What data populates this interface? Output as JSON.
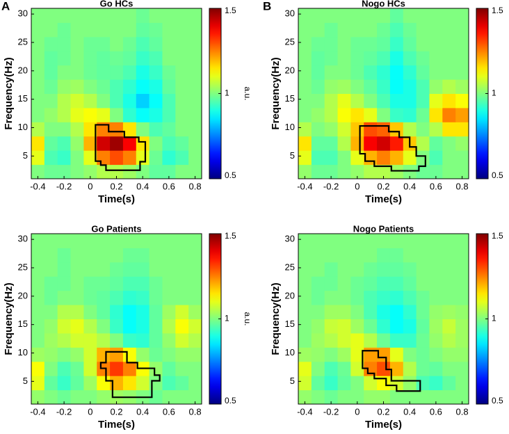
{
  "chart_data": [
    {
      "type": "heatmap",
      "panel_label": "A",
      "title": "Go HCs",
      "xlabel": "Time(s)",
      "ylabel": "Frequency(Hz)",
      "colorbar_label": "a.u.",
      "colormap": "jet",
      "x": [
        -0.4,
        -0.3,
        -0.2,
        -0.1,
        0,
        0.1,
        0.2,
        0.3,
        0.4,
        0.5,
        0.6,
        0.7,
        0.8
      ],
      "y": [
        2.25,
        4.75,
        7.25,
        9.75,
        12.25,
        14.75,
        17.25,
        19.75,
        22.25,
        24.75,
        27.25,
        29.75
      ],
      "z": [
        [
          1.0,
          0.98,
          0.98,
          1.0,
          1.02,
          1.05,
          1.05,
          1.03,
          1.0,
          0.97,
          0.97,
          1.0,
          1.0
        ],
        [
          1.1,
          0.95,
          0.93,
          1.0,
          1.1,
          1.25,
          1.3,
          1.25,
          1.1,
          0.98,
          0.92,
          0.95,
          1.0
        ],
        [
          1.15,
          0.97,
          0.95,
          1.02,
          1.2,
          1.42,
          1.47,
          1.38,
          1.15,
          1.0,
          0.95,
          0.97,
          1.0
        ],
        [
          1.05,
          1.0,
          1.0,
          1.05,
          1.15,
          1.25,
          1.25,
          1.15,
          1.0,
          0.95,
          0.97,
          1.0,
          1.0
        ],
        [
          1.0,
          1.02,
          1.05,
          1.1,
          1.12,
          1.1,
          1.0,
          0.92,
          0.88,
          0.9,
          0.95,
          1.0,
          1.0
        ],
        [
          1.0,
          1.0,
          1.05,
          1.08,
          1.05,
          1.0,
          0.95,
          0.9,
          0.83,
          0.88,
          0.95,
          1.0,
          1.0
        ],
        [
          1.0,
          0.98,
          1.02,
          1.03,
          1.0,
          0.98,
          0.95,
          0.92,
          0.88,
          0.9,
          0.97,
          1.0,
          1.0
        ],
        [
          1.0,
          0.97,
          1.0,
          1.0,
          0.98,
          0.97,
          0.97,
          0.95,
          0.9,
          0.93,
          0.98,
          1.0,
          1.0
        ],
        [
          1.0,
          0.97,
          0.98,
          1.0,
          0.98,
          0.97,
          0.98,
          0.97,
          0.93,
          0.95,
          1.0,
          1.0,
          1.0
        ],
        [
          1.0,
          0.98,
          0.98,
          1.0,
          0.98,
          0.98,
          1.0,
          0.98,
          0.95,
          0.97,
          1.0,
          1.0,
          1.0
        ],
        [
          1.0,
          1.0,
          0.98,
          1.0,
          1.0,
          1.0,
          1.0,
          1.0,
          0.97,
          0.98,
          1.0,
          1.0,
          1.0
        ],
        [
          1.0,
          1.0,
          1.0,
          1.0,
          1.0,
          1.0,
          1.0,
          1.0,
          0.98,
          1.0,
          1.0,
          1.0,
          1.0
        ]
      ],
      "cluster": {
        "x": [
          0.04,
          0.14,
          0.14,
          0.26,
          0.26,
          0.37,
          0.37,
          0.42,
          0.42,
          0.38,
          0.38,
          0.12,
          0.12,
          0.08,
          0.08,
          0.04
        ],
        "y": [
          10.5,
          10.5,
          9.3,
          9.3,
          8.3,
          8.3,
          7.5,
          7.5,
          4.0,
          4.0,
          2.5,
          2.5,
          3.4,
          3.4,
          4.1,
          4.1
        ]
      },
      "xlim": [
        -0.45,
        0.85
      ],
      "ylim": [
        1,
        31
      ],
      "xticks": [
        -0.4,
        -0.2,
        0,
        0.2,
        0.4,
        0.6,
        0.8
      ],
      "yticks": [
        5,
        10,
        15,
        20,
        25,
        30
      ],
      "clim": [
        0.5,
        1.5
      ],
      "cticks": [
        0.5,
        1,
        1.5
      ]
    },
    {
      "type": "heatmap",
      "panel_label": "B",
      "title": "Nogo HCs",
      "xlabel": "Time(s)",
      "ylabel": "Frequency(Hz)",
      "colorbar_label": "a.u.",
      "colormap": "jet",
      "x": [
        -0.4,
        -0.3,
        -0.2,
        -0.1,
        0,
        0.1,
        0.2,
        0.3,
        0.4,
        0.5,
        0.6,
        0.7,
        0.8
      ],
      "y": [
        2.25,
        4.75,
        7.25,
        9.75,
        12.25,
        14.75,
        17.25,
        19.75,
        22.25,
        24.75,
        27.25,
        29.75
      ],
      "z": [
        [
          1.02,
          0.98,
          0.98,
          1.0,
          1.02,
          1.05,
          1.05,
          1.03,
          1.0,
          0.98,
          0.98,
          1.0,
          1.0
        ],
        [
          1.1,
          0.95,
          0.95,
          1.0,
          1.1,
          1.2,
          1.25,
          1.2,
          1.1,
          1.0,
          0.95,
          1.0,
          1.0
        ],
        [
          1.15,
          0.97,
          0.97,
          1.05,
          1.2,
          1.38,
          1.42,
          1.35,
          1.18,
          1.05,
          0.97,
          1.0,
          1.02
        ],
        [
          1.05,
          1.0,
          1.02,
          1.08,
          1.18,
          1.3,
          1.28,
          1.18,
          1.05,
          1.0,
          1.05,
          1.15,
          1.15
        ],
        [
          1.0,
          1.02,
          1.05,
          1.12,
          1.15,
          1.1,
          1.0,
          0.93,
          0.92,
          0.98,
          1.15,
          1.25,
          1.22
        ],
        [
          1.0,
          1.0,
          1.05,
          1.1,
          1.05,
          1.0,
          0.95,
          0.9,
          0.9,
          0.95,
          1.1,
          1.15,
          1.12
        ],
        [
          1.0,
          0.98,
          1.02,
          1.03,
          1.0,
          0.97,
          0.93,
          0.88,
          0.9,
          0.95,
          1.02,
          1.05,
          1.03
        ],
        [
          1.0,
          0.97,
          1.0,
          1.0,
          0.98,
          0.95,
          0.92,
          0.88,
          0.92,
          0.97,
          1.0,
          1.0,
          1.0
        ],
        [
          1.0,
          0.97,
          0.98,
          1.0,
          0.98,
          0.97,
          0.95,
          0.9,
          0.95,
          0.98,
          1.0,
          1.0,
          1.0
        ],
        [
          1.0,
          0.98,
          0.98,
          1.0,
          0.98,
          0.98,
          0.97,
          0.93,
          0.97,
          1.0,
          1.0,
          1.0,
          1.0
        ],
        [
          1.0,
          1.0,
          0.98,
          1.0,
          1.0,
          1.0,
          0.98,
          0.95,
          0.98,
          1.0,
          1.0,
          1.0,
          1.0
        ],
        [
          1.0,
          1.0,
          1.0,
          1.0,
          1.0,
          1.0,
          1.0,
          0.97,
          1.0,
          1.0,
          1.0,
          1.0,
          1.0
        ]
      ],
      "cluster": {
        "x": [
          0.02,
          0.24,
          0.24,
          0.32,
          0.32,
          0.4,
          0.4,
          0.45,
          0.45,
          0.52,
          0.52,
          0.47,
          0.47,
          0.26,
          0.26,
          0.13,
          0.13,
          0.06,
          0.06,
          0.02
        ],
        "y": [
          10.3,
          10.3,
          9.3,
          9.3,
          8.3,
          8.3,
          6.6,
          6.6,
          5.0,
          5.0,
          3.2,
          3.2,
          2.4,
          2.4,
          3.2,
          3.2,
          4.1,
          4.1,
          5.4,
          5.4
        ]
      },
      "xlim": [
        -0.45,
        0.85
      ],
      "ylim": [
        1,
        31
      ],
      "xticks": [
        -0.4,
        -0.2,
        0,
        0.2,
        0.4,
        0.6,
        0.8
      ],
      "yticks": [
        5,
        10,
        15,
        20,
        25,
        30
      ],
      "clim": [
        0.5,
        1.5
      ],
      "cticks": [
        0.5,
        1,
        1.5
      ]
    },
    {
      "type": "heatmap",
      "title": "Go Patients",
      "xlabel": "Time(s)",
      "ylabel": "Frequency(Hz)",
      "colorbar_label": "a.u.",
      "colormap": "jet",
      "x": [
        -0.4,
        -0.3,
        -0.2,
        -0.1,
        0,
        0.1,
        0.2,
        0.3,
        0.4,
        0.5,
        0.6,
        0.7,
        0.8
      ],
      "y": [
        2.25,
        4.75,
        7.25,
        9.75,
        12.25,
        14.75,
        17.25,
        19.75,
        22.25,
        24.75,
        27.25,
        29.75
      ],
      "z": [
        [
          1.02,
          1.0,
          0.98,
          1.0,
          1.0,
          1.02,
          1.03,
          1.02,
          1.0,
          0.98,
          1.0,
          1.0,
          1.0
        ],
        [
          1.1,
          0.97,
          0.93,
          0.97,
          1.03,
          1.12,
          1.2,
          1.15,
          1.08,
          1.0,
          0.95,
          0.97,
          1.0
        ],
        [
          1.12,
          1.0,
          0.95,
          0.98,
          1.08,
          1.25,
          1.32,
          1.25,
          1.12,
          1.02,
          0.97,
          1.0,
          1.0
        ],
        [
          1.03,
          1.02,
          1.0,
          1.02,
          1.08,
          1.2,
          1.22,
          1.12,
          1.02,
          0.98,
          1.0,
          1.02,
          1.02
        ],
        [
          1.0,
          1.03,
          1.05,
          1.08,
          1.08,
          1.05,
          1.0,
          0.93,
          0.92,
          0.97,
          1.02,
          1.08,
          1.05
        ],
        [
          1.0,
          1.02,
          1.08,
          1.1,
          1.05,
          1.0,
          0.93,
          0.88,
          0.9,
          0.97,
          1.05,
          1.12,
          1.08
        ],
        [
          1.0,
          1.0,
          1.05,
          1.05,
          1.0,
          0.97,
          0.92,
          0.88,
          0.9,
          0.97,
          1.03,
          1.08,
          1.03
        ],
        [
          1.0,
          0.98,
          1.0,
          1.0,
          0.98,
          0.97,
          0.95,
          0.92,
          0.93,
          0.98,
          1.0,
          1.0,
          1.0
        ],
        [
          1.0,
          0.98,
          0.98,
          1.0,
          0.98,
          0.98,
          0.97,
          0.95,
          0.95,
          0.98,
          1.0,
          1.0,
          1.0
        ],
        [
          1.0,
          1.0,
          0.98,
          1.0,
          1.0,
          1.0,
          0.98,
          0.97,
          0.97,
          1.0,
          1.0,
          1.0,
          1.0
        ],
        [
          1.0,
          1.0,
          0.98,
          1.0,
          1.0,
          1.0,
          1.0,
          0.98,
          0.98,
          1.0,
          1.0,
          1.0,
          1.0
        ],
        [
          1.0,
          1.0,
          1.0,
          1.0,
          1.0,
          1.0,
          1.0,
          1.0,
          1.0,
          1.0,
          1.0,
          1.0,
          1.0
        ]
      ],
      "cluster": {
        "x": [
          0.12,
          0.28,
          0.28,
          0.36,
          0.36,
          0.49,
          0.49,
          0.53,
          0.53,
          0.47,
          0.47,
          0.17,
          0.17,
          0.12,
          0.12,
          0.08,
          0.08,
          0.12
        ],
        "y": [
          10.2,
          10.2,
          8.3,
          8.3,
          7.3,
          7.3,
          6.1,
          6.1,
          5.1,
          5.1,
          2.2,
          2.2,
          5.1,
          5.1,
          7.3,
          7.3,
          8.3,
          8.3
        ]
      },
      "xlim": [
        -0.45,
        0.85
      ],
      "ylim": [
        1,
        31
      ],
      "xticks": [
        -0.4,
        -0.2,
        0,
        0.2,
        0.4,
        0.6,
        0.8
      ],
      "yticks": [
        5,
        10,
        15,
        20,
        25,
        30
      ],
      "clim": [
        0.5,
        1.5
      ],
      "cticks": [
        0.5,
        1,
        1.5
      ]
    },
    {
      "type": "heatmap",
      "title": "Nogo Patients",
      "xlabel": "Time(s)",
      "ylabel": "Frequency(Hz)",
      "colorbar_label": "a.u.",
      "colormap": "jet",
      "x": [
        -0.4,
        -0.3,
        -0.2,
        -0.1,
        0,
        0.1,
        0.2,
        0.3,
        0.4,
        0.5,
        0.6,
        0.7,
        0.8
      ],
      "y": [
        2.25,
        4.75,
        7.25,
        9.75,
        12.25,
        14.75,
        17.25,
        19.75,
        22.25,
        24.75,
        27.25,
        29.75
      ],
      "z": [
        [
          1.02,
          1.0,
          0.98,
          1.0,
          1.0,
          1.02,
          1.02,
          1.0,
          1.0,
          1.0,
          1.0,
          1.0,
          1.0
        ],
        [
          1.08,
          0.97,
          0.93,
          0.97,
          1.0,
          1.08,
          1.12,
          1.08,
          1.02,
          0.95,
          0.93,
          0.97,
          1.0
        ],
        [
          1.1,
          1.0,
          0.95,
          0.98,
          1.08,
          1.25,
          1.3,
          1.2,
          1.05,
          0.98,
          0.97,
          1.0,
          1.0
        ],
        [
          1.03,
          1.02,
          1.0,
          1.03,
          1.1,
          1.22,
          1.22,
          1.1,
          1.0,
          0.98,
          1.0,
          1.02,
          1.02
        ],
        [
          1.0,
          1.03,
          1.05,
          1.08,
          1.1,
          1.05,
          0.98,
          0.93,
          0.93,
          0.98,
          1.02,
          1.05,
          1.03
        ],
        [
          1.0,
          1.02,
          1.07,
          1.08,
          1.03,
          0.98,
          0.92,
          0.88,
          0.9,
          0.97,
          1.03,
          1.07,
          1.03
        ],
        [
          1.0,
          1.0,
          1.03,
          1.03,
          1.0,
          0.95,
          0.9,
          0.88,
          0.92,
          0.98,
          1.02,
          1.03,
          1.02
        ],
        [
          1.0,
          0.98,
          1.0,
          1.0,
          0.98,
          0.95,
          0.93,
          0.92,
          0.95,
          0.98,
          1.0,
          1.0,
          1.0
        ],
        [
          1.0,
          0.98,
          0.98,
          1.0,
          0.98,
          0.97,
          0.95,
          0.95,
          0.97,
          1.0,
          1.0,
          1.0,
          1.0
        ],
        [
          1.0,
          1.0,
          0.98,
          1.0,
          1.0,
          0.98,
          0.97,
          0.97,
          0.98,
          1.0,
          1.0,
          1.0,
          1.0
        ],
        [
          1.0,
          1.0,
          1.0,
          1.0,
          1.0,
          1.0,
          0.98,
          0.98,
          1.0,
          1.0,
          1.0,
          1.0,
          1.0
        ],
        [
          1.0,
          1.0,
          1.0,
          1.0,
          1.0,
          1.0,
          1.0,
          1.0,
          1.0,
          1.0,
          1.0,
          1.0,
          1.0
        ]
      ],
      "cluster": {
        "x": [
          0.04,
          0.16,
          0.16,
          0.22,
          0.22,
          0.26,
          0.26,
          0.48,
          0.48,
          0.3,
          0.3,
          0.22,
          0.22,
          0.13,
          0.13,
          0.08,
          0.08,
          0.04
        ],
        "y": [
          10.4,
          10.4,
          9.2,
          9.2,
          7.1,
          7.1,
          5.1,
          5.1,
          3.3,
          3.3,
          4.3,
          4.3,
          5.5,
          5.5,
          6.4,
          6.4,
          7.3,
          7.3
        ]
      },
      "xlim": [
        -0.45,
        0.85
      ],
      "ylim": [
        1,
        31
      ],
      "xticks": [
        -0.4,
        -0.2,
        0,
        0.2,
        0.4,
        0.6,
        0.8
      ],
      "yticks": [
        5,
        10,
        15,
        20,
        25,
        30
      ],
      "clim": [
        0.5,
        1.5
      ],
      "cticks": [
        0.5,
        1,
        1.5
      ]
    }
  ]
}
